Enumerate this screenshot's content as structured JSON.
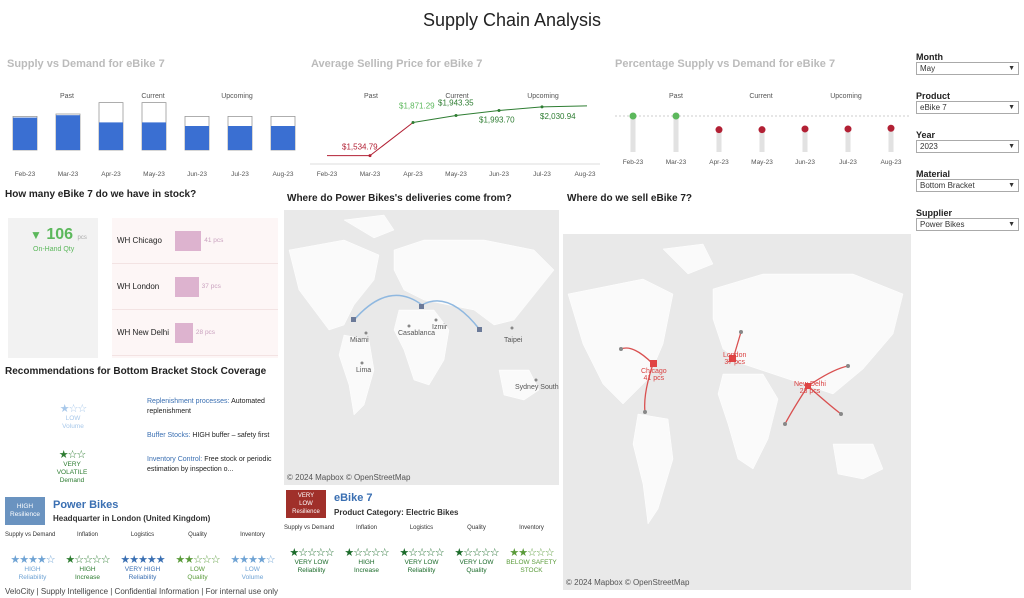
{
  "title": "Supply Chain Analysis",
  "colors": {
    "bar": "#3a6fd2",
    "green": "#5cb85c",
    "red": "#b22034",
    "pink": "#ddb3cf",
    "darkgreen": "#2e7d32",
    "blue": "#6fa3d4"
  },
  "panels": {
    "supply_demand": {
      "title": "Supply vs Demand for eBike 7",
      "phases": [
        "Past",
        "Current",
        "Upcoming"
      ]
    },
    "price": {
      "title": "Average Selling Price for eBike 7",
      "phases": [
        "Past",
        "Current",
        "Upcoming"
      ]
    },
    "pct": {
      "title": "Percentage Supply vs Demand for eBike 7",
      "phases": [
        "Past",
        "Current",
        "Upcoming"
      ]
    }
  },
  "chart_data": [
    {
      "type": "bar",
      "title": "Supply vs Demand for eBike 7",
      "categories": [
        "Feb-23",
        "Mar-23",
        "Apr-23",
        "May-23",
        "Jun-23",
        "Jul-23",
        "Aug-23"
      ],
      "series": [
        {
          "name": "Supply",
          "values": [
            0.54,
            0.58,
            0.46,
            0.46,
            0.4,
            0.4,
            0.4
          ]
        },
        {
          "name": "Demand",
          "values": [
            0.56,
            0.6,
            0.79,
            0.79,
            0.56,
            0.56,
            0.56
          ]
        }
      ]
    },
    {
      "type": "line",
      "title": "Average Selling Price for eBike 7",
      "categories": [
        "Feb-23",
        "Mar-23",
        "Apr-23",
        "May-23",
        "Jun-23",
        "Jul-23",
        "Aug-23"
      ],
      "labels": [
        "$1,534.79",
        "$1,871.29",
        "$1,943.35",
        "$1,993.70",
        "$2,030.94"
      ],
      "points": [
        {
          "x": "Mar-23",
          "y": 1534.79
        },
        {
          "x": "Apr-23",
          "y": 1871.29
        },
        {
          "x": "May-23",
          "y": 1943.35
        },
        {
          "x": "Jun-23",
          "y": 1993.7
        },
        {
          "x": "Jul-23",
          "y": 2030.94
        }
      ]
    },
    {
      "type": "scatter",
      "title": "Percentage Supply vs Demand for eBike 7",
      "categories": [
        "Feb-23",
        "Mar-23",
        "Apr-23",
        "May-23",
        "Jun-23",
        "Jul-23",
        "Aug-23"
      ],
      "values": [
        1.0,
        1.0,
        0.62,
        0.62,
        0.64,
        0.64,
        0.66
      ],
      "status": [
        "ok",
        "ok",
        "low",
        "low",
        "low",
        "low",
        "low"
      ]
    }
  ],
  "stock": {
    "title": "How many eBike 7 do we have in stock?",
    "qty": "106",
    "unit": "pcs",
    "qty_label": "On-Hand Qty",
    "warehouses": [
      {
        "name": "WH Chicago",
        "value": "41 pcs",
        "fraction": 0.41
      },
      {
        "name": "WH London",
        "value": "37 pcs",
        "fraction": 0.37
      },
      {
        "name": "WH New Delhi",
        "value": "28 pcs",
        "fraction": 0.28
      }
    ]
  },
  "deliveries": {
    "title": "Where do Power Bikes's deliveries come from?",
    "cities": [
      "Miami",
      "Casablanca",
      "Izmir",
      "Taipei",
      "Lima",
      "Sydney South"
    ],
    "attribution": "© 2024 Mapbox  © OpenStreetMap"
  },
  "sales": {
    "title": "Where do we sell eBike 7?",
    "cities": [
      {
        "name": "Chicago",
        "qty": "41 pcs"
      },
      {
        "name": "London",
        "qty": "37 pcs"
      },
      {
        "name": "New Delhi",
        "qty": "28 pcs"
      }
    ],
    "attribution": "© 2024 Mapbox  © OpenStreetMap"
  },
  "recommend": {
    "title": "Recommendations for Bottom Bracket Stock Coverage",
    "volume": {
      "stars": "★☆☆",
      "line1": "LOW",
      "line2": "Volume"
    },
    "demand": {
      "stars": "★☆☆",
      "line1": "VERY",
      "line2": "VOLATILE",
      "line3": "Demand"
    },
    "items": [
      {
        "head": "Replenishment processes:",
        "body": "Automated replenishment"
      },
      {
        "head": "Buffer Stocks:",
        "body": "HIGH buffer – safety first"
      },
      {
        "head": "Inventory Control:",
        "body": "Free stock or periodic estimation by inspection o..."
      }
    ]
  },
  "supplier": {
    "badge_line1": "HIGH",
    "badge_line2": "Resilience",
    "name": "Power Bikes",
    "hq": "Headquarter in London (United Kingdom)",
    "cols": [
      "Supply vs Demand",
      "Inflation",
      "Logistics",
      "Quality",
      "Inventory"
    ],
    "ratings": [
      {
        "stars": "★★★★☆",
        "l1": "HIGH",
        "l2": "Reliability",
        "color": "#6fa3d4"
      },
      {
        "stars": "★☆☆☆☆",
        "l1": "HIGH",
        "l2": "Increase",
        "color": "#2e7d32"
      },
      {
        "stars": "★★★★★",
        "l1": "VERY HIGH",
        "l2": "Reliability",
        "color": "#3a6fb2"
      },
      {
        "stars": "★★☆☆☆",
        "l1": "LOW",
        "l2": "Quality",
        "color": "#5a9b3a"
      },
      {
        "stars": "★★★★☆",
        "l1": "LOW",
        "l2": "Volume",
        "color": "#6fa3d4"
      }
    ]
  },
  "product": {
    "badge_line1": "VERY",
    "badge_line2": "LOW",
    "badge_line3": "Resilience",
    "name": "eBike 7",
    "category": "Product Category: Electric Bikes",
    "cols": [
      "Supply vs Demand",
      "Inflation",
      "Logistics",
      "Quality",
      "Inventory"
    ],
    "ratings": [
      {
        "stars": "★☆☆☆☆",
        "l1": "VERY LOW",
        "l2": "Reliability",
        "color": "#1b6b2a"
      },
      {
        "stars": "★☆☆☆☆",
        "l1": "HIGH",
        "l2": "Increase",
        "color": "#1b6b2a"
      },
      {
        "stars": "★☆☆☆☆",
        "l1": "VERY LOW",
        "l2": "Reliability",
        "color": "#1b6b2a"
      },
      {
        "stars": "★☆☆☆☆",
        "l1": "VERY LOW",
        "l2": "Quality",
        "color": "#1b6b2a"
      },
      {
        "stars": "★★☆☆☆",
        "l1": "BELOW SAFETY",
        "l2": "STOCK",
        "color": "#5a9b3a"
      }
    ]
  },
  "footer": "VeloCity | Supply Intelligence | Confidential Information | For internal use only",
  "filters": [
    {
      "label": "Month",
      "value": "May"
    },
    {
      "label": "Product",
      "value": "eBike 7"
    },
    {
      "label": "Year",
      "value": "2023"
    },
    {
      "label": "Material",
      "value": "Bottom Bracket"
    },
    {
      "label": "Supplier",
      "value": "Power Bikes"
    }
  ]
}
